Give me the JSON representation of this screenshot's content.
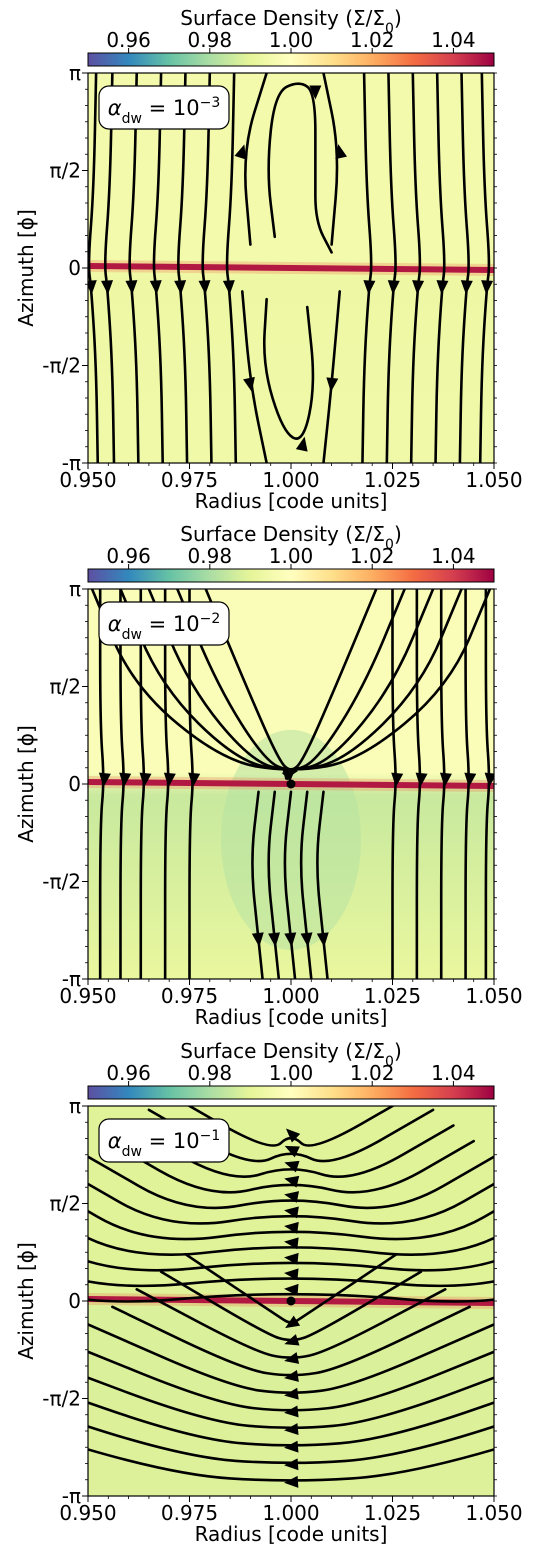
{
  "chart_data": [
    {
      "type": "heatmap",
      "panel_label": "α",
      "panel_label_sub": "dw",
      "panel_label_eq": " = 10",
      "panel_label_exp": "−3",
      "colorbar": {
        "title": "Surface Density (Σ/Σ",
        "title_sub": "0",
        "title_end": ")",
        "range": [
          0.95,
          1.05
        ],
        "ticks": [
          0.96,
          0.98,
          1.0,
          1.02,
          1.04
        ],
        "tick_labels": [
          "0.96",
          "0.98",
          "1.00",
          "1.02",
          "1.04"
        ],
        "colormap": "Spectral_r"
      },
      "xlabel": "Radius [code units]",
      "ylabel": "Azimuth [ϕ]",
      "xlim": [
        0.95,
        1.05
      ],
      "ylim": [
        -3.1416,
        3.1416
      ],
      "xticks": [
        0.95,
        0.975,
        1.0,
        1.025,
        1.05
      ],
      "xtick_labels": [
        "0.950",
        "0.975",
        "1.000",
        "1.025",
        "1.050"
      ],
      "yticks": [
        3.1416,
        1.5708,
        0,
        -1.5708,
        -3.1416
      ],
      "ytick_labels": [
        "π",
        "π/2",
        "0",
        "-π/2",
        "-π"
      ],
      "background_upper": 0.995,
      "background_lower": 0.993,
      "wake_value": 1.05,
      "streamlines": "vertical flow lines, horseshoe orbits near r = 1.0"
    },
    {
      "type": "heatmap",
      "panel_label": "α",
      "panel_label_sub": "dw",
      "panel_label_eq": " = 10",
      "panel_label_exp": "−2",
      "colorbar": {
        "title": "Surface Density (Σ/Σ",
        "title_sub": "0",
        "title_end": ")",
        "range": [
          0.95,
          1.05
        ],
        "ticks": [
          0.96,
          0.98,
          1.0,
          1.02,
          1.04
        ],
        "tick_labels": [
          "0.96",
          "0.98",
          "1.00",
          "1.02",
          "1.04"
        ],
        "colormap": "Spectral_r"
      },
      "xlabel": "Radius [code units]",
      "ylabel": "Azimuth [ϕ]",
      "xlim": [
        0.95,
        1.05
      ],
      "ylim": [
        -3.1416,
        3.1416
      ],
      "xticks": [
        0.95,
        0.975,
        1.0,
        1.025,
        1.05
      ],
      "xtick_labels": [
        "0.950",
        "0.975",
        "1.000",
        "1.025",
        "1.050"
      ],
      "yticks": [
        3.1416,
        1.5708,
        0,
        -1.5708,
        -3.1416
      ],
      "ytick_labels": [
        "π",
        "π/2",
        "0",
        "-π/2",
        "-π"
      ],
      "background_upper": 0.998,
      "background_lower": 0.985,
      "wake_value": 1.05,
      "streamlines": "U-shaped flow above planet, mostly vertical elsewhere"
    },
    {
      "type": "heatmap",
      "panel_label": "α",
      "panel_label_sub": "dw",
      "panel_label_eq": " = 10",
      "panel_label_exp": "−1",
      "colorbar": {
        "title": "Surface Density (Σ/Σ",
        "title_sub": "0",
        "title_end": ")",
        "range": [
          0.95,
          1.05
        ],
        "ticks": [
          0.96,
          0.98,
          1.0,
          1.02,
          1.04
        ],
        "tick_labels": [
          "0.96",
          "0.98",
          "1.00",
          "1.02",
          "1.04"
        ],
        "colormap": "Spectral_r"
      },
      "xlabel": "Radius [code units]",
      "ylabel": "Azimuth [ϕ]",
      "xlim": [
        0.95,
        1.05
      ],
      "ylim": [
        -3.1416,
        3.1416
      ],
      "xticks": [
        0.95,
        0.975,
        1.0,
        1.025,
        1.05
      ],
      "xtick_labels": [
        "0.950",
        "0.975",
        "1.000",
        "1.025",
        "1.050"
      ],
      "yticks": [
        3.1416,
        1.5708,
        0,
        -1.5708,
        -3.1416
      ],
      "ytick_labels": [
        "π",
        "π/2",
        "0",
        "-π/2",
        "-π"
      ],
      "background_upper": 0.989,
      "background_lower": 0.988,
      "wake_value": 1.05,
      "streamlines": "nested parabolic flow lines, flow directed toward negative radius"
    }
  ]
}
